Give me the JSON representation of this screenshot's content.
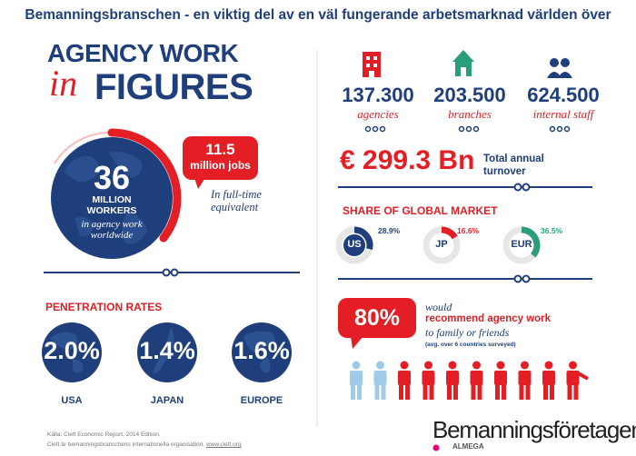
{
  "page_title": "Bemanningsbranschen - en viktig del av en väl fungerande arbetsmarknad världen över",
  "header": {
    "line1": "AGENCY WORK",
    "line2_prefix": "in",
    "line2": "FIGURES"
  },
  "workers": {
    "number": "36",
    "line1": "MILLION",
    "line2": "WORKERS",
    "line3": "in agency work",
    "line4": "worldwide"
  },
  "jobs": {
    "number": "11.5",
    "label": "million jobs",
    "note_line1": "In full-time",
    "note_line2": "equivalent"
  },
  "stats": [
    {
      "value": "137.300",
      "label": "agencies",
      "icon": "building-icon"
    },
    {
      "value": "203.500",
      "label": "branches",
      "icon": "house-icon"
    },
    {
      "value": "624.500",
      "label": "internal staff",
      "icon": "people-icon"
    }
  ],
  "turnover": {
    "value": "€ 299.3 Bn",
    "label_line1": "Total annual",
    "label_line2": "turnover"
  },
  "global_market": {
    "title": "SHARE OF GLOBAL MARKET",
    "items": [
      {
        "region": "US",
        "share": "28.9%",
        "fraction": 0.289
      },
      {
        "region": "JP",
        "share": "16.6%",
        "fraction": 0.166
      },
      {
        "region": "EUR",
        "share": "36.5%",
        "fraction": 0.365
      }
    ]
  },
  "penetration": {
    "title": "PENETRATION RATES",
    "items": [
      {
        "value": "2.0%",
        "region": "USA"
      },
      {
        "value": "1.4%",
        "region": "JAPAN"
      },
      {
        "value": "1.6%",
        "region": "EUROPE"
      }
    ]
  },
  "recommend": {
    "percent": "80%",
    "would": "would",
    "main": "recommend agency work",
    "friends": "to family or friends",
    "note": "(avg. over 6 countries surveyed)",
    "recommend_count": 8,
    "total_people": 10
  },
  "source": {
    "line1": "Källa: Ciett Economic Report, 2014 Edition.",
    "line2_text": "Ciett är bemanningsbranschens internationella organisation.",
    "line2_link": "www.ciett.org"
  },
  "brand": {
    "name": "Bemanningsföretagen",
    "sub": "ALMEGA"
  },
  "colors": {
    "navy": "#1f3e7c",
    "red": "#e31e24",
    "light_blue": "#9fcbe6",
    "green": "#2a9d7a"
  }
}
